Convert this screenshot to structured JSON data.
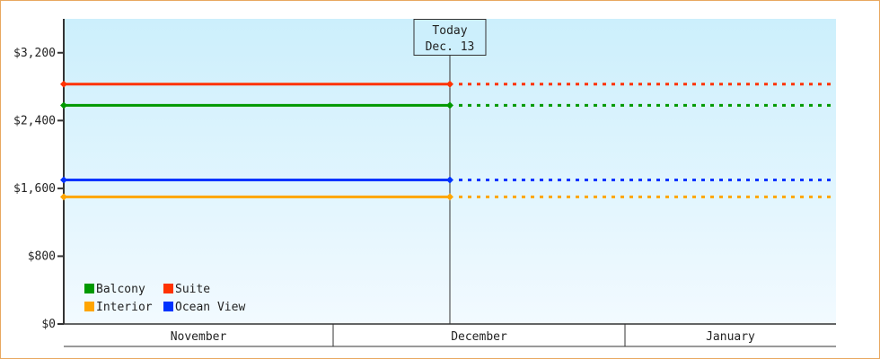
{
  "chart_data": {
    "type": "line",
    "title": "",
    "xlabel": "",
    "ylabel": "",
    "ylim": [
      0,
      3600
    ],
    "y_ticks": [
      {
        "value": 0,
        "label": "$0"
      },
      {
        "value": 800,
        "label": "$800"
      },
      {
        "value": 1600,
        "label": "$1,600"
      },
      {
        "value": 2400,
        "label": "$2,400"
      },
      {
        "value": 3200,
        "label": "$3,200"
      }
    ],
    "x_months": [
      "November",
      "December",
      "January"
    ],
    "today": {
      "line1": "Today",
      "line2": "Dec. 13"
    },
    "series": [
      {
        "name": "Balcony",
        "color": "#009900",
        "value": 2580
      },
      {
        "name": "Suite",
        "color": "#ff3300",
        "value": 2830
      },
      {
        "name": "Interior",
        "color": "#ffa500",
        "value": 1500
      },
      {
        "name": "Ocean View",
        "color": "#0033ff",
        "value": 1700
      }
    ],
    "projection_style": "dashed after today",
    "grid": false,
    "legend_position": "bottom-left",
    "background_gradient": [
      "#cceffc",
      "#f2faff"
    ]
  }
}
